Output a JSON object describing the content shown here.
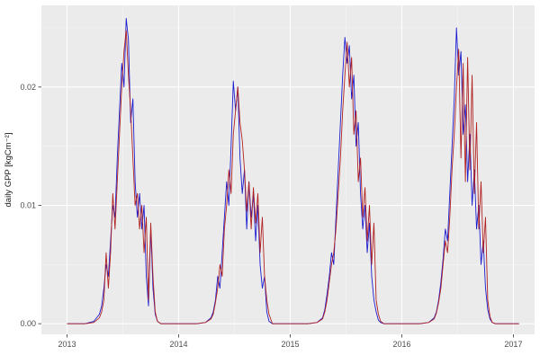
{
  "figure": {
    "background": "#ffffff",
    "panel_background": "#ebebeb",
    "grid_major_color": "#ffffff",
    "grid_minor_color": "#f5f5f5",
    "tick_mark_color": "#333333",
    "tick_label_color": "#4d4d4d",
    "axis_title_color": "#1a1a1a"
  },
  "chart_data": {
    "type": "line",
    "title": "",
    "xlabel": "",
    "ylabel": "daily GPP [kgCm⁻²]",
    "grid": true,
    "legend": "none",
    "xlim": [
      2012.77,
      2017.19
    ],
    "ylim": [
      -0.0009,
      0.0269
    ],
    "x_ticks": [
      2013,
      2014,
      2015,
      2016,
      2017
    ],
    "x_tick_labels": [
      "2013",
      "2014",
      "2015",
      "2016",
      "2017"
    ],
    "y_ticks": [
      0,
      0.01,
      0.02
    ],
    "y_tick_labels": [
      "0.00",
      "0.01",
      "0.02"
    ],
    "x_minor_ticks": [
      2013.5,
      2014.5,
      2015.5,
      2016.5
    ],
    "y_minor_ticks": [
      0.005,
      0.015,
      0.025
    ],
    "x": [
      2013.0,
      2013.08,
      2013.16,
      2013.24,
      2013.29,
      2013.31,
      2013.33,
      2013.35,
      2013.37,
      2013.39,
      2013.41,
      2013.43,
      2013.45,
      2013.47,
      2013.49,
      2013.51,
      2013.53,
      2013.55,
      2013.57,
      2013.59,
      2013.61,
      2013.63,
      2013.65,
      2013.67,
      2013.69,
      2013.71,
      2013.73,
      2013.75,
      2013.77,
      2013.79,
      2013.81,
      2013.84,
      2013.9,
      2013.96,
      2014.0,
      2014.08,
      2014.16,
      2014.24,
      2014.29,
      2014.31,
      2014.33,
      2014.35,
      2014.37,
      2014.39,
      2014.41,
      2014.43,
      2014.45,
      2014.47,
      2014.49,
      2014.51,
      2014.53,
      2014.55,
      2014.57,
      2014.59,
      2014.61,
      2014.63,
      2014.65,
      2014.67,
      2014.69,
      2014.71,
      2014.73,
      2014.75,
      2014.77,
      2014.79,
      2014.81,
      2014.84,
      2014.9,
      2014.96,
      2015.0,
      2015.08,
      2015.16,
      2015.24,
      2015.29,
      2015.31,
      2015.33,
      2015.35,
      2015.37,
      2015.39,
      2015.41,
      2015.43,
      2015.45,
      2015.47,
      2015.49,
      2015.51,
      2015.53,
      2015.55,
      2015.57,
      2015.59,
      2015.61,
      2015.63,
      2015.65,
      2015.67,
      2015.69,
      2015.71,
      2015.73,
      2015.75,
      2015.77,
      2015.79,
      2015.81,
      2015.84,
      2015.9,
      2015.96,
      2016.0,
      2016.08,
      2016.16,
      2016.24,
      2016.29,
      2016.31,
      2016.33,
      2016.35,
      2016.37,
      2016.39,
      2016.41,
      2016.43,
      2016.45,
      2016.47,
      2016.49,
      2016.51,
      2016.53,
      2016.55,
      2016.57,
      2016.59,
      2016.61,
      2016.63,
      2016.65,
      2016.67,
      2016.69,
      2016.71,
      2016.73,
      2016.75,
      2016.77,
      2016.79,
      2016.81,
      2016.84,
      2016.9,
      2016.96,
      2017.0,
      2017.05
    ],
    "series": [
      {
        "name": "blue-series",
        "color": "#1c1cd0",
        "y": [
          0,
          0,
          0,
          0.0002,
          0.0008,
          0.0015,
          0.003,
          0.005,
          0.004,
          0.007,
          0.01,
          0.009,
          0.014,
          0.018,
          0.022,
          0.02,
          0.0258,
          0.024,
          0.017,
          0.019,
          0.012,
          0.009,
          0.011,
          0.008,
          0.01,
          0.004,
          0.0015,
          0.008,
          0.003,
          0.0008,
          0.0002,
          0,
          0,
          0,
          0,
          0,
          0,
          0.0001,
          0.0005,
          0.001,
          0.002,
          0.004,
          0.003,
          0.006,
          0.009,
          0.012,
          0.01,
          0.015,
          0.0205,
          0.018,
          0.02,
          0.014,
          0.011,
          0.013,
          0.008,
          0.012,
          0.009,
          0.011,
          0.007,
          0.01,
          0.005,
          0.003,
          0.004,
          0.001,
          0.0002,
          0,
          0,
          0,
          0,
          0,
          0,
          0.0001,
          0.0005,
          0.0012,
          0.0025,
          0.004,
          0.006,
          0.005,
          0.009,
          0.013,
          0.017,
          0.021,
          0.0242,
          0.022,
          0.0235,
          0.019,
          0.021,
          0.015,
          0.017,
          0.011,
          0.008,
          0.01,
          0.006,
          0.0085,
          0.004,
          0.002,
          0.001,
          0.0003,
          0.0001,
          0,
          0,
          0,
          0,
          0,
          0,
          0.0001,
          0.0005,
          0.001,
          0.002,
          0.0035,
          0.0055,
          0.008,
          0.007,
          0.011,
          0.015,
          0.019,
          0.025,
          0.021,
          0.023,
          0.016,
          0.0185,
          0.012,
          0.016,
          0.01,
          0.013,
          0.008,
          0.01,
          0.005,
          0.007,
          0.003,
          0.0012,
          0.0004,
          0.0001,
          0,
          0,
          0,
          0,
          0
        ]
      },
      {
        "name": "red-series",
        "color": "#b22222",
        "y": [
          0,
          0,
          0,
          0.0001,
          0.0005,
          0.001,
          0.002,
          0.006,
          0.003,
          0.006,
          0.011,
          0.008,
          0.012,
          0.016,
          0.02,
          0.023,
          0.0248,
          0.021,
          0.018,
          0.014,
          0.01,
          0.011,
          0.008,
          0.01,
          0.006,
          0.009,
          0.002,
          0.0085,
          0.004,
          0.001,
          0.0002,
          0,
          0,
          0,
          0,
          0,
          0,
          0.0001,
          0.0004,
          0.0008,
          0.0018,
          0.003,
          0.005,
          0.004,
          0.008,
          0.01,
          0.013,
          0.011,
          0.016,
          0.018,
          0.02,
          0.017,
          0.0155,
          0.013,
          0.0095,
          0.012,
          0.008,
          0.0115,
          0.0085,
          0.011,
          0.006,
          0.009,
          0.004,
          0.002,
          0.0008,
          0,
          0,
          0,
          0,
          0,
          0,
          0.0001,
          0.0004,
          0.001,
          0.002,
          0.0035,
          0.005,
          0.006,
          0.008,
          0.011,
          0.014,
          0.018,
          0.021,
          0.0238,
          0.02,
          0.0225,
          0.016,
          0.018,
          0.012,
          0.014,
          0.009,
          0.0115,
          0.007,
          0.01,
          0.005,
          0.0085,
          0.002,
          0.0008,
          0.0002,
          0,
          0,
          0,
          0,
          0,
          0,
          0.0001,
          0.0004,
          0.0009,
          0.0018,
          0.003,
          0.005,
          0.007,
          0.006,
          0.009,
          0.013,
          0.016,
          0.02,
          0.0232,
          0.014,
          0.022,
          0.012,
          0.0225,
          0.013,
          0.021,
          0.011,
          0.017,
          0.008,
          0.012,
          0.006,
          0.009,
          0.002,
          0.0006,
          0.0001,
          0,
          0,
          0,
          0,
          0
        ]
      }
    ]
  }
}
